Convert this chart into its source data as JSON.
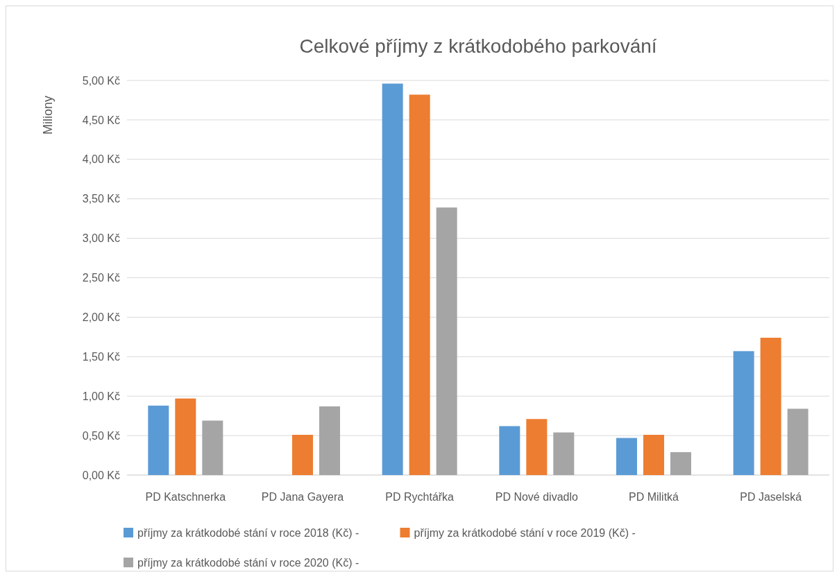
{
  "chart_data": {
    "type": "bar",
    "title": "Celkové příjmy z krátkodobého parkování",
    "ylabel": "Miliony",
    "categories": [
      "PD Katschnerka",
      "PD Jana Gayera",
      "PD Rychtářka",
      "PD Nové divadlo",
      "PD Militká",
      "PD Jaselská"
    ],
    "series": [
      {
        "name": "příjmy za krátkodobé stání v roce 2018 (Kč) -",
        "color": "#5b9bd5",
        "values": [
          0.88,
          null,
          4.96,
          0.62,
          0.47,
          1.57
        ]
      },
      {
        "name": "příjmy za krátkodobé stání v roce 2019 (Kč) -",
        "color": "#ed7d31",
        "values": [
          0.97,
          0.51,
          4.82,
          0.71,
          0.51,
          1.74
        ]
      },
      {
        "name": "příjmy za krátkodobé stání v roce 2020 (Kč) -",
        "color": "#a5a5a5",
        "values": [
          0.69,
          0.87,
          3.39,
          0.54,
          0.29,
          0.84
        ]
      }
    ],
    "ylim": [
      0,
      5
    ],
    "yticks": [
      {
        "value": 0,
        "label": "0,00 Kč"
      },
      {
        "value": 0.5,
        "label": "0,50 Kč"
      },
      {
        "value": 1,
        "label": "1,00 Kč"
      },
      {
        "value": 1.5,
        "label": "1,50 Kč"
      },
      {
        "value": 2,
        "label": "2,00 Kč"
      },
      {
        "value": 2.5,
        "label": "2,50 Kč"
      },
      {
        "value": 3,
        "label": "3,00 Kč"
      },
      {
        "value": 3.5,
        "label": "3,50 Kč"
      },
      {
        "value": 4,
        "label": "4,00 Kč"
      },
      {
        "value": 4.5,
        "label": "4,50 Kč"
      },
      {
        "value": 5,
        "label": "5,00 Kč"
      }
    ],
    "grid": "y",
    "legend": "bottom"
  }
}
